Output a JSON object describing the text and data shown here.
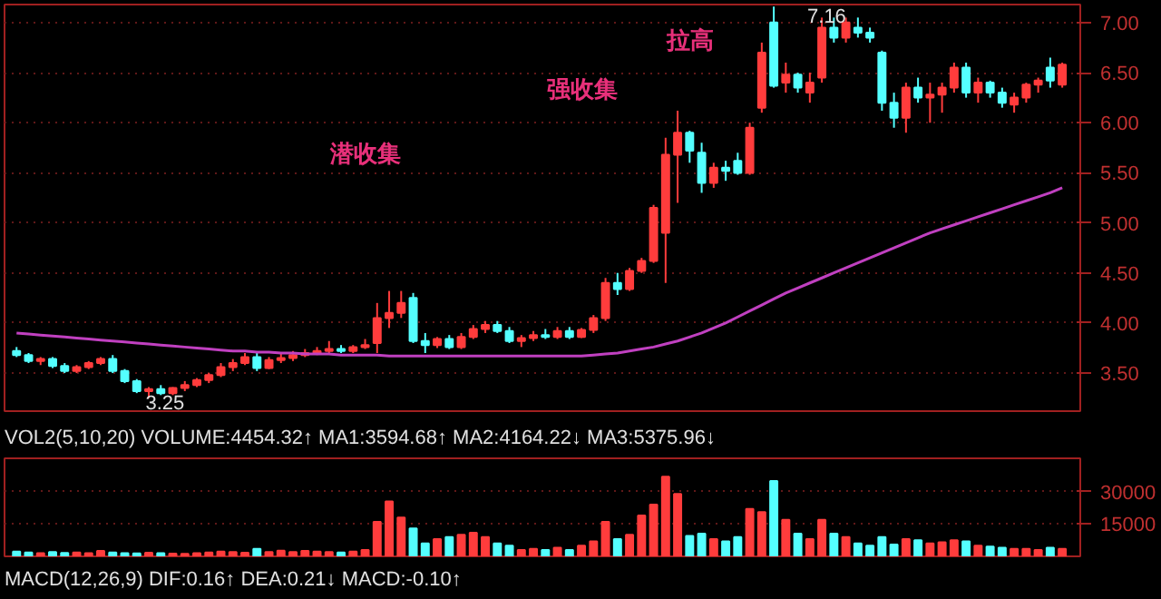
{
  "chart_data": [
    {
      "type": "candlestick",
      "categories": [
        null,
        null,
        null,
        null,
        null,
        null,
        null,
        null,
        null,
        null,
        null,
        null,
        null,
        null,
        null,
        null,
        null,
        null,
        null,
        null,
        null,
        null,
        null,
        null,
        null,
        null,
        null,
        null,
        null,
        null,
        null,
        null,
        null,
        null,
        null,
        null,
        null,
        null,
        null,
        null,
        null,
        null,
        null,
        null,
        null,
        null,
        null,
        null,
        null,
        null,
        null,
        null,
        null,
        null,
        null,
        null,
        null,
        null,
        null,
        null,
        null,
        null,
        null,
        null,
        null,
        null,
        null,
        null,
        null,
        null,
        null,
        null,
        null,
        null,
        null,
        null,
        null,
        null,
        null,
        null,
        null,
        null,
        null,
        null,
        null,
        null,
        null,
        null
      ],
      "ohlc": [
        [
          3.72,
          3.76,
          3.66,
          3.68
        ],
        [
          3.68,
          3.7,
          3.6,
          3.62
        ],
        [
          3.62,
          3.66,
          3.58,
          3.64
        ],
        [
          3.64,
          3.66,
          3.55,
          3.57
        ],
        [
          3.57,
          3.6,
          3.5,
          3.52
        ],
        [
          3.52,
          3.58,
          3.5,
          3.56
        ],
        [
          3.56,
          3.62,
          3.54,
          3.6
        ],
        [
          3.6,
          3.66,
          3.58,
          3.64
        ],
        [
          3.64,
          3.68,
          3.5,
          3.52
        ],
        [
          3.52,
          3.54,
          3.4,
          3.42
        ],
        [
          3.42,
          3.44,
          3.3,
          3.32
        ],
        [
          3.32,
          3.36,
          3.25,
          3.34
        ],
        [
          3.34,
          3.38,
          3.28,
          3.3
        ],
        [
          3.3,
          3.36,
          3.28,
          3.35
        ],
        [
          3.35,
          3.42,
          3.32,
          3.38
        ],
        [
          3.38,
          3.45,
          3.36,
          3.43
        ],
        [
          3.43,
          3.5,
          3.4,
          3.48
        ],
        [
          3.48,
          3.6,
          3.46,
          3.56
        ],
        [
          3.56,
          3.64,
          3.52,
          3.6
        ],
        [
          3.6,
          3.7,
          3.58,
          3.66
        ],
        [
          3.66,
          3.7,
          3.52,
          3.55
        ],
        [
          3.55,
          3.66,
          3.54,
          3.63
        ],
        [
          3.63,
          3.7,
          3.6,
          3.65
        ],
        [
          3.65,
          3.72,
          3.62,
          3.68
        ],
        [
          3.68,
          3.74,
          3.66,
          3.7
        ],
        [
          3.7,
          3.76,
          3.68,
          3.72
        ],
        [
          3.72,
          3.82,
          3.7,
          3.74
        ],
        [
          3.74,
          3.78,
          3.7,
          3.72
        ],
        [
          3.72,
          3.78,
          3.7,
          3.76
        ],
        [
          3.76,
          3.84,
          3.74,
          3.78
        ],
        [
          3.8,
          4.2,
          3.7,
          4.05
        ],
        [
          4.05,
          4.32,
          3.95,
          4.1
        ],
        [
          4.1,
          4.32,
          4.05,
          4.2
        ],
        [
          4.25,
          4.3,
          3.8,
          3.82
        ],
        [
          3.82,
          3.9,
          3.7,
          3.78
        ],
        [
          3.78,
          3.86,
          3.75,
          3.84
        ],
        [
          3.84,
          3.88,
          3.74,
          3.76
        ],
        [
          3.76,
          3.9,
          3.74,
          3.86
        ],
        [
          3.86,
          3.98,
          3.84,
          3.94
        ],
        [
          3.94,
          4.02,
          3.9,
          3.98
        ],
        [
          3.98,
          4.02,
          3.9,
          3.92
        ],
        [
          3.92,
          3.96,
          3.8,
          3.82
        ],
        [
          3.82,
          3.88,
          3.76,
          3.85
        ],
        [
          3.85,
          3.92,
          3.82,
          3.88
        ],
        [
          3.88,
          3.94,
          3.84,
          3.86
        ],
        [
          3.86,
          3.96,
          3.84,
          3.92
        ],
        [
          3.92,
          3.96,
          3.84,
          3.86
        ],
        [
          3.86,
          3.95,
          3.85,
          3.93
        ],
        [
          3.93,
          4.08,
          3.9,
          4.05
        ],
        [
          4.05,
          4.45,
          4.02,
          4.4
        ],
        [
          4.4,
          4.5,
          4.28,
          4.34
        ],
        [
          4.34,
          4.55,
          4.32,
          4.52
        ],
        [
          4.52,
          4.65,
          4.5,
          4.62
        ],
        [
          4.62,
          5.18,
          4.6,
          5.15
        ],
        [
          4.9,
          5.85,
          4.4,
          5.68
        ],
        [
          5.68,
          6.12,
          5.2,
          5.9
        ],
        [
          5.9,
          5.92,
          5.6,
          5.72
        ],
        [
          5.7,
          5.8,
          5.3,
          5.4
        ],
        [
          5.4,
          5.6,
          5.35,
          5.55
        ],
        [
          5.55,
          5.62,
          5.42,
          5.52
        ],
        [
          5.62,
          5.7,
          5.48,
          5.5
        ],
        [
          5.5,
          6.0,
          5.48,
          5.95
        ],
        [
          6.15,
          6.8,
          6.1,
          6.7
        ],
        [
          7.0,
          7.16,
          6.35,
          6.37
        ],
        [
          6.4,
          6.6,
          6.3,
          6.48
        ],
        [
          6.48,
          6.5,
          6.3,
          6.35
        ],
        [
          6.3,
          6.5,
          6.2,
          6.4
        ],
        [
          6.45,
          7.05,
          6.4,
          6.95
        ],
        [
          6.95,
          7.05,
          6.8,
          6.85
        ],
        [
          6.85,
          7.05,
          6.8,
          7.0
        ],
        [
          6.95,
          7.05,
          6.85,
          6.9
        ],
        [
          6.9,
          6.95,
          6.8,
          6.85
        ],
        [
          6.7,
          6.72,
          6.12,
          6.2
        ],
        [
          6.2,
          6.3,
          5.95,
          6.05
        ],
        [
          6.05,
          6.4,
          5.9,
          6.35
        ],
        [
          6.35,
          6.45,
          6.2,
          6.25
        ],
        [
          6.25,
          6.4,
          6.0,
          6.28
        ],
        [
          6.28,
          6.4,
          6.1,
          6.35
        ],
        [
          6.35,
          6.6,
          6.3,
          6.55
        ],
        [
          6.55,
          6.6,
          6.25,
          6.3
        ],
        [
          6.3,
          6.45,
          6.2,
          6.4
        ],
        [
          6.4,
          6.42,
          6.25,
          6.3
        ],
        [
          6.3,
          6.35,
          6.15,
          6.2
        ],
        [
          6.18,
          6.3,
          6.1,
          6.25
        ],
        [
          6.25,
          6.4,
          6.2,
          6.38
        ],
        [
          6.38,
          6.45,
          6.3,
          6.42
        ],
        [
          6.55,
          6.65,
          6.35,
          6.42
        ],
        [
          6.38,
          6.6,
          6.35,
          6.58
        ]
      ],
      "colors": [
        "#54ffff",
        "#54ffff",
        "#ff3c3c",
        "#54ffff",
        "#54ffff",
        "#ff3c3c",
        "#ff3c3c",
        "#ff3c3c",
        "#54ffff",
        "#54ffff",
        "#54ffff",
        "#ff3c3c",
        "#54ffff",
        "#ff3c3c",
        "#ff3c3c",
        "#ff3c3c",
        "#ff3c3c",
        "#ff3c3c",
        "#ff3c3c",
        "#ff3c3c",
        "#54ffff",
        "#ff3c3c",
        "#ff3c3c",
        "#ff3c3c",
        "#ff3c3c",
        "#ff3c3c",
        "#ff3c3c",
        "#54ffff",
        "#ff3c3c",
        "#ff3c3c",
        "#ff3c3c",
        "#ff3c3c",
        "#ff3c3c",
        "#54ffff",
        "#54ffff",
        "#ff3c3c",
        "#54ffff",
        "#ff3c3c",
        "#ff3c3c",
        "#ff3c3c",
        "#54ffff",
        "#54ffff",
        "#ff3c3c",
        "#ff3c3c",
        "#54ffff",
        "#ff3c3c",
        "#54ffff",
        "#ff3c3c",
        "#ff3c3c",
        "#ff3c3c",
        "#54ffff",
        "#ff3c3c",
        "#ff3c3c",
        "#ff3c3c",
        "#ff3c3c",
        "#ff3c3c",
        "#54ffff",
        "#54ffff",
        "#ff3c3c",
        "#54ffff",
        "#54ffff",
        "#ff3c3c",
        "#ff3c3c",
        "#54ffff",
        "#ff3c3c",
        "#54ffff",
        "#ff3c3c",
        "#ff3c3c",
        "#54ffff",
        "#ff3c3c",
        "#54ffff",
        "#54ffff",
        "#54ffff",
        "#54ffff",
        "#ff3c3c",
        "#54ffff",
        "#ff3c3c",
        "#ff3c3c",
        "#ff3c3c",
        "#54ffff",
        "#ff3c3c",
        "#54ffff",
        "#54ffff",
        "#ff3c3c",
        "#ff3c3c",
        "#ff3c3c",
        "#54ffff",
        "#ff3c3c"
      ],
      "series": [
        {
          "type": "line",
          "color": "#c040c0",
          "values": [
            3.9,
            3.89,
            3.88,
            3.87,
            3.86,
            3.85,
            3.84,
            3.83,
            3.82,
            3.81,
            3.8,
            3.79,
            3.78,
            3.77,
            3.76,
            3.75,
            3.74,
            3.73,
            3.72,
            3.72,
            3.71,
            3.71,
            3.7,
            3.7,
            3.69,
            3.69,
            3.69,
            3.68,
            3.68,
            3.68,
            3.68,
            3.67,
            3.67,
            3.67,
            3.67,
            3.67,
            3.67,
            3.67,
            3.67,
            3.67,
            3.67,
            3.67,
            3.67,
            3.67,
            3.67,
            3.67,
            3.67,
            3.67,
            3.68,
            3.69,
            3.7,
            3.72,
            3.74,
            3.76,
            3.79,
            3.82,
            3.86,
            3.9,
            3.95,
            4.0,
            4.06,
            4.12,
            4.18,
            4.24,
            4.3,
            4.35,
            4.4,
            4.45,
            4.5,
            4.55,
            4.6,
            4.65,
            4.7,
            4.75,
            4.8,
            4.85,
            4.9,
            4.94,
            4.98,
            5.02,
            5.06,
            5.1,
            5.14,
            5.18,
            5.22,
            5.26,
            5.3,
            5.35
          ]
        }
      ],
      "ylim": [
        3.12,
        7.18
      ],
      "yticks": [
        {
          "value": 3.5,
          "label": "3.50"
        },
        {
          "value": 4,
          "label": "4.00"
        },
        {
          "value": 4.5,
          "label": "4.50"
        },
        {
          "value": 5,
          "label": "5.00"
        },
        {
          "value": 5.5,
          "label": "5.50"
        },
        {
          "value": 6,
          "label": "6.00"
        },
        {
          "value": 6.5,
          "label": "6.50"
        },
        {
          "value": 7,
          "label": "7.00"
        }
      ],
      "tick_labels": "y",
      "grid": "y",
      "annotations": [
        "潜收集",
        "强收集",
        "拉高",
        "7.16",
        "3.25"
      ]
    },
    {
      "type": "bar",
      "title": "VOL2(5,10,20) VOLUME:4454.32↑ MA1:3594.68↑ MA2:4164.22↓ MA3:5375.96↓",
      "categories": [
        null,
        null,
        null,
        null,
        null,
        null,
        null,
        null,
        null,
        null,
        null,
        null,
        null,
        null,
        null,
        null,
        null,
        null,
        null,
        null,
        null,
        null,
        null,
        null,
        null,
        null,
        null,
        null,
        null,
        null,
        null,
        null,
        null,
        null,
        null,
        null,
        null,
        null,
        null,
        null,
        null,
        null,
        null,
        null,
        null,
        null,
        null,
        null,
        null,
        null,
        null,
        null,
        null,
        null,
        null,
        null,
        null,
        null,
        null,
        null,
        null,
        null,
        null,
        null,
        null,
        null,
        null,
        null,
        null,
        null,
        null,
        null,
        null,
        null,
        null,
        null,
        null,
        null,
        null,
        null,
        null,
        null,
        null,
        null,
        null,
        null,
        null,
        null
      ],
      "values": [
        2200,
        1800,
        1500,
        2000,
        1600,
        1800,
        1500,
        2500,
        1800,
        1500,
        1400,
        1700,
        1500,
        1300,
        1200,
        1500,
        1800,
        2200,
        2000,
        1700,
        3500,
        2000,
        2600,
        2000,
        2500,
        2200,
        2000,
        1800,
        2200,
        3000,
        16000,
        25500,
        18000,
        13000,
        6000,
        8000,
        9000,
        10000,
        11000,
        9000,
        6000,
        5000,
        3000,
        3500,
        3000,
        4000,
        3000,
        5000,
        7000,
        16000,
        8000,
        10000,
        19000,
        24000,
        37000,
        29000,
        9500,
        10500,
        8000,
        7000,
        9000,
        22000,
        20500,
        35000,
        17000,
        10500,
        8000,
        17000,
        10500,
        9000,
        6000,
        5000,
        9000,
        5500,
        8000,
        7500,
        6000,
        6500,
        7500,
        7000,
        5000,
        4500,
        4000,
        3500,
        3500,
        3000,
        4000,
        3500
      ],
      "colors": [
        "#54ffff",
        "#54ffff",
        "#ff3c3c",
        "#54ffff",
        "#54ffff",
        "#ff3c3c",
        "#ff3c3c",
        "#ff3c3c",
        "#54ffff",
        "#54ffff",
        "#54ffff",
        "#ff3c3c",
        "#54ffff",
        "#ff3c3c",
        "#ff3c3c",
        "#ff3c3c",
        "#ff3c3c",
        "#ff3c3c",
        "#ff3c3c",
        "#ff3c3c",
        "#54ffff",
        "#ff3c3c",
        "#ff3c3c",
        "#ff3c3c",
        "#ff3c3c",
        "#ff3c3c",
        "#ff3c3c",
        "#54ffff",
        "#ff3c3c",
        "#ff3c3c",
        "#ff3c3c",
        "#ff3c3c",
        "#ff3c3c",
        "#54ffff",
        "#54ffff",
        "#ff3c3c",
        "#54ffff",
        "#ff3c3c",
        "#ff3c3c",
        "#ff3c3c",
        "#54ffff",
        "#54ffff",
        "#ff3c3c",
        "#ff3c3c",
        "#54ffff",
        "#ff3c3c",
        "#54ffff",
        "#ff3c3c",
        "#ff3c3c",
        "#ff3c3c",
        "#54ffff",
        "#ff3c3c",
        "#ff3c3c",
        "#ff3c3c",
        "#ff3c3c",
        "#ff3c3c",
        "#54ffff",
        "#54ffff",
        "#ff3c3c",
        "#54ffff",
        "#54ffff",
        "#ff3c3c",
        "#ff3c3c",
        "#54ffff",
        "#ff3c3c",
        "#54ffff",
        "#ff3c3c",
        "#ff3c3c",
        "#54ffff",
        "#ff3c3c",
        "#54ffff",
        "#54ffff",
        "#54ffff",
        "#54ffff",
        "#ff3c3c",
        "#54ffff",
        "#ff3c3c",
        "#ff3c3c",
        "#ff3c3c",
        "#54ffff",
        "#ff3c3c",
        "#54ffff",
        "#54ffff",
        "#ff3c3c",
        "#ff3c3c",
        "#ff3c3c",
        "#54ffff",
        "#ff3c3c"
      ],
      "ylim": [
        0,
        45500
      ],
      "yticks": [
        15000,
        30000
      ],
      "tick_labels": "y",
      "grid": "y",
      "annotations": [
        "MACD(12,26,9) DIF:0.16↑ DEA:0.21↓ MACD:-0.10↑"
      ]
    }
  ]
}
